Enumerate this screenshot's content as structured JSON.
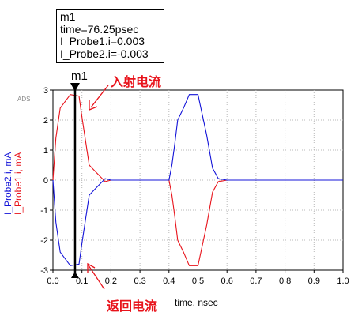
{
  "marker": {
    "name": "m1",
    "line1": "m1",
    "line2": "time=76.25psec",
    "line3": "I_Probe1.i=0.003",
    "line4": "I_Probe2.i=-0.003",
    "time_ns": 0.07625
  },
  "annotations": {
    "incident": "入射电流",
    "return": "返回电流"
  },
  "watermark": "ADS",
  "chart_data": {
    "type": "line",
    "xlabel": "time, nsec",
    "ylabel_series": [
      "I_Probe2.i, mA",
      "I_Probe1.i, mA"
    ],
    "xlim": [
      0.0,
      1.0
    ],
    "ylim": [
      -3,
      3
    ],
    "xticks": [
      "0.0",
      "0.1",
      "0.2",
      "0.3",
      "0.4",
      "0.5",
      "0.6",
      "0.7",
      "0.8",
      "0.9",
      "1.0"
    ],
    "yticks": [
      "3",
      "2",
      "1",
      "0",
      "-1",
      "-2",
      "-3"
    ],
    "grid": true,
    "series": [
      {
        "name": "I_Probe1.i",
        "color": "#e8131b",
        "x": [
          0.0,
          0.01,
          0.025,
          0.06,
          0.09,
          0.1,
          0.125,
          0.15,
          0.18,
          0.2,
          0.25,
          0.3,
          0.35,
          0.4,
          0.41,
          0.42,
          0.43,
          0.45,
          0.47,
          0.5,
          0.52,
          0.53,
          0.55,
          0.57,
          0.6,
          0.65,
          0.7,
          0.8,
          0.9,
          1.0
        ],
        "y": [
          0.0,
          1.4,
          2.4,
          2.85,
          2.8,
          2.1,
          0.5,
          0.25,
          -0.05,
          0.0,
          0.0,
          0.0,
          0.0,
          0.0,
          -0.5,
          -1.2,
          -2.0,
          -2.4,
          -2.85,
          -2.85,
          -1.95,
          -1.5,
          -0.4,
          -0.05,
          0.0,
          0.0,
          0.0,
          0.0,
          0.0,
          0.0
        ]
      },
      {
        "name": "I_Probe2.i",
        "color": "#1414d8",
        "x": [
          0.0,
          0.01,
          0.025,
          0.06,
          0.09,
          0.1,
          0.125,
          0.15,
          0.18,
          0.2,
          0.25,
          0.3,
          0.35,
          0.4,
          0.41,
          0.42,
          0.43,
          0.45,
          0.47,
          0.5,
          0.52,
          0.53,
          0.55,
          0.57,
          0.6,
          0.65,
          0.7,
          0.8,
          0.9,
          1.0
        ],
        "y": [
          0.0,
          -1.4,
          -2.4,
          -2.85,
          -2.8,
          -2.1,
          -0.5,
          -0.25,
          0.05,
          0.0,
          0.0,
          0.0,
          0.0,
          0.0,
          0.5,
          1.2,
          2.0,
          2.4,
          2.85,
          2.85,
          1.95,
          1.5,
          0.4,
          0.05,
          0.0,
          0.0,
          0.0,
          0.0,
          0.0,
          0.0
        ]
      }
    ]
  }
}
